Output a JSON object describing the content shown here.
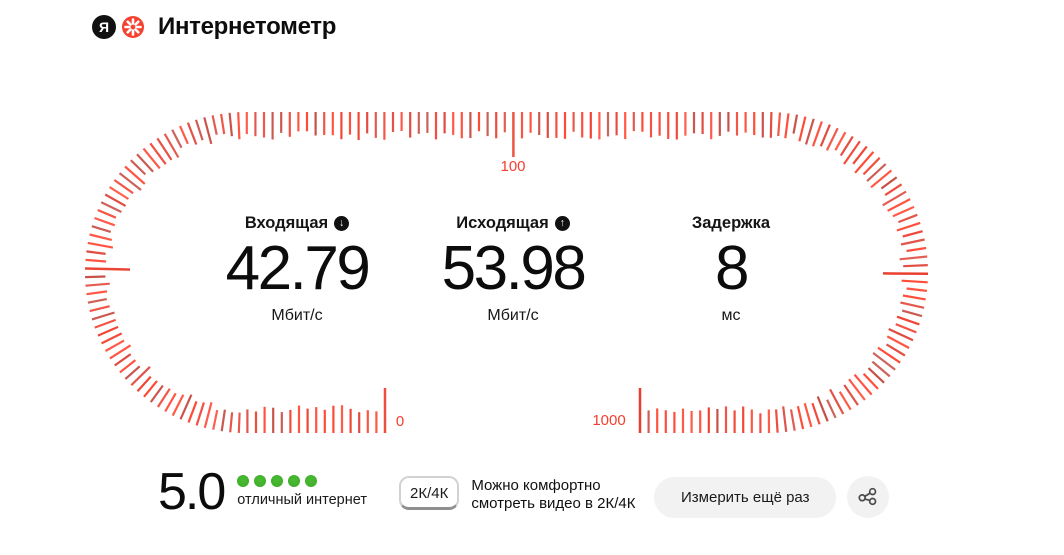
{
  "header": {
    "logo_letter": "Я",
    "brand": "Интернетометр"
  },
  "gauge": {
    "scale_labels": [
      {
        "text": "0"
      },
      {
        "text": "100"
      },
      {
        "text": "1000"
      }
    ],
    "label_color": "#f2402e",
    "tick_palette": [
      "#ff4a36",
      "#ff4a36",
      "#f04434",
      "#e14a3e",
      "#c74f46"
    ],
    "major_tick_color": "#ea3d2b"
  },
  "metrics": [
    {
      "label": "Входящая",
      "icon_glyph": "↓",
      "value": "42.79",
      "unit": "Мбит/с"
    },
    {
      "label": "Исходящая",
      "icon_glyph": "↑",
      "value": "53.98",
      "unit": "Мбит/с"
    },
    {
      "label": "Задержка",
      "value": "8",
      "unit": "мс"
    }
  ],
  "rating": {
    "score": "5.0",
    "dots_count": 5,
    "dot_color": "#4cbb33",
    "caption": "отличный интернет"
  },
  "hint": {
    "badge": "2К/4К",
    "text": "Можно комфортно смотреть видео в 2К/4К"
  },
  "actions": {
    "measure_again_label": "Измерить ещё раз"
  }
}
